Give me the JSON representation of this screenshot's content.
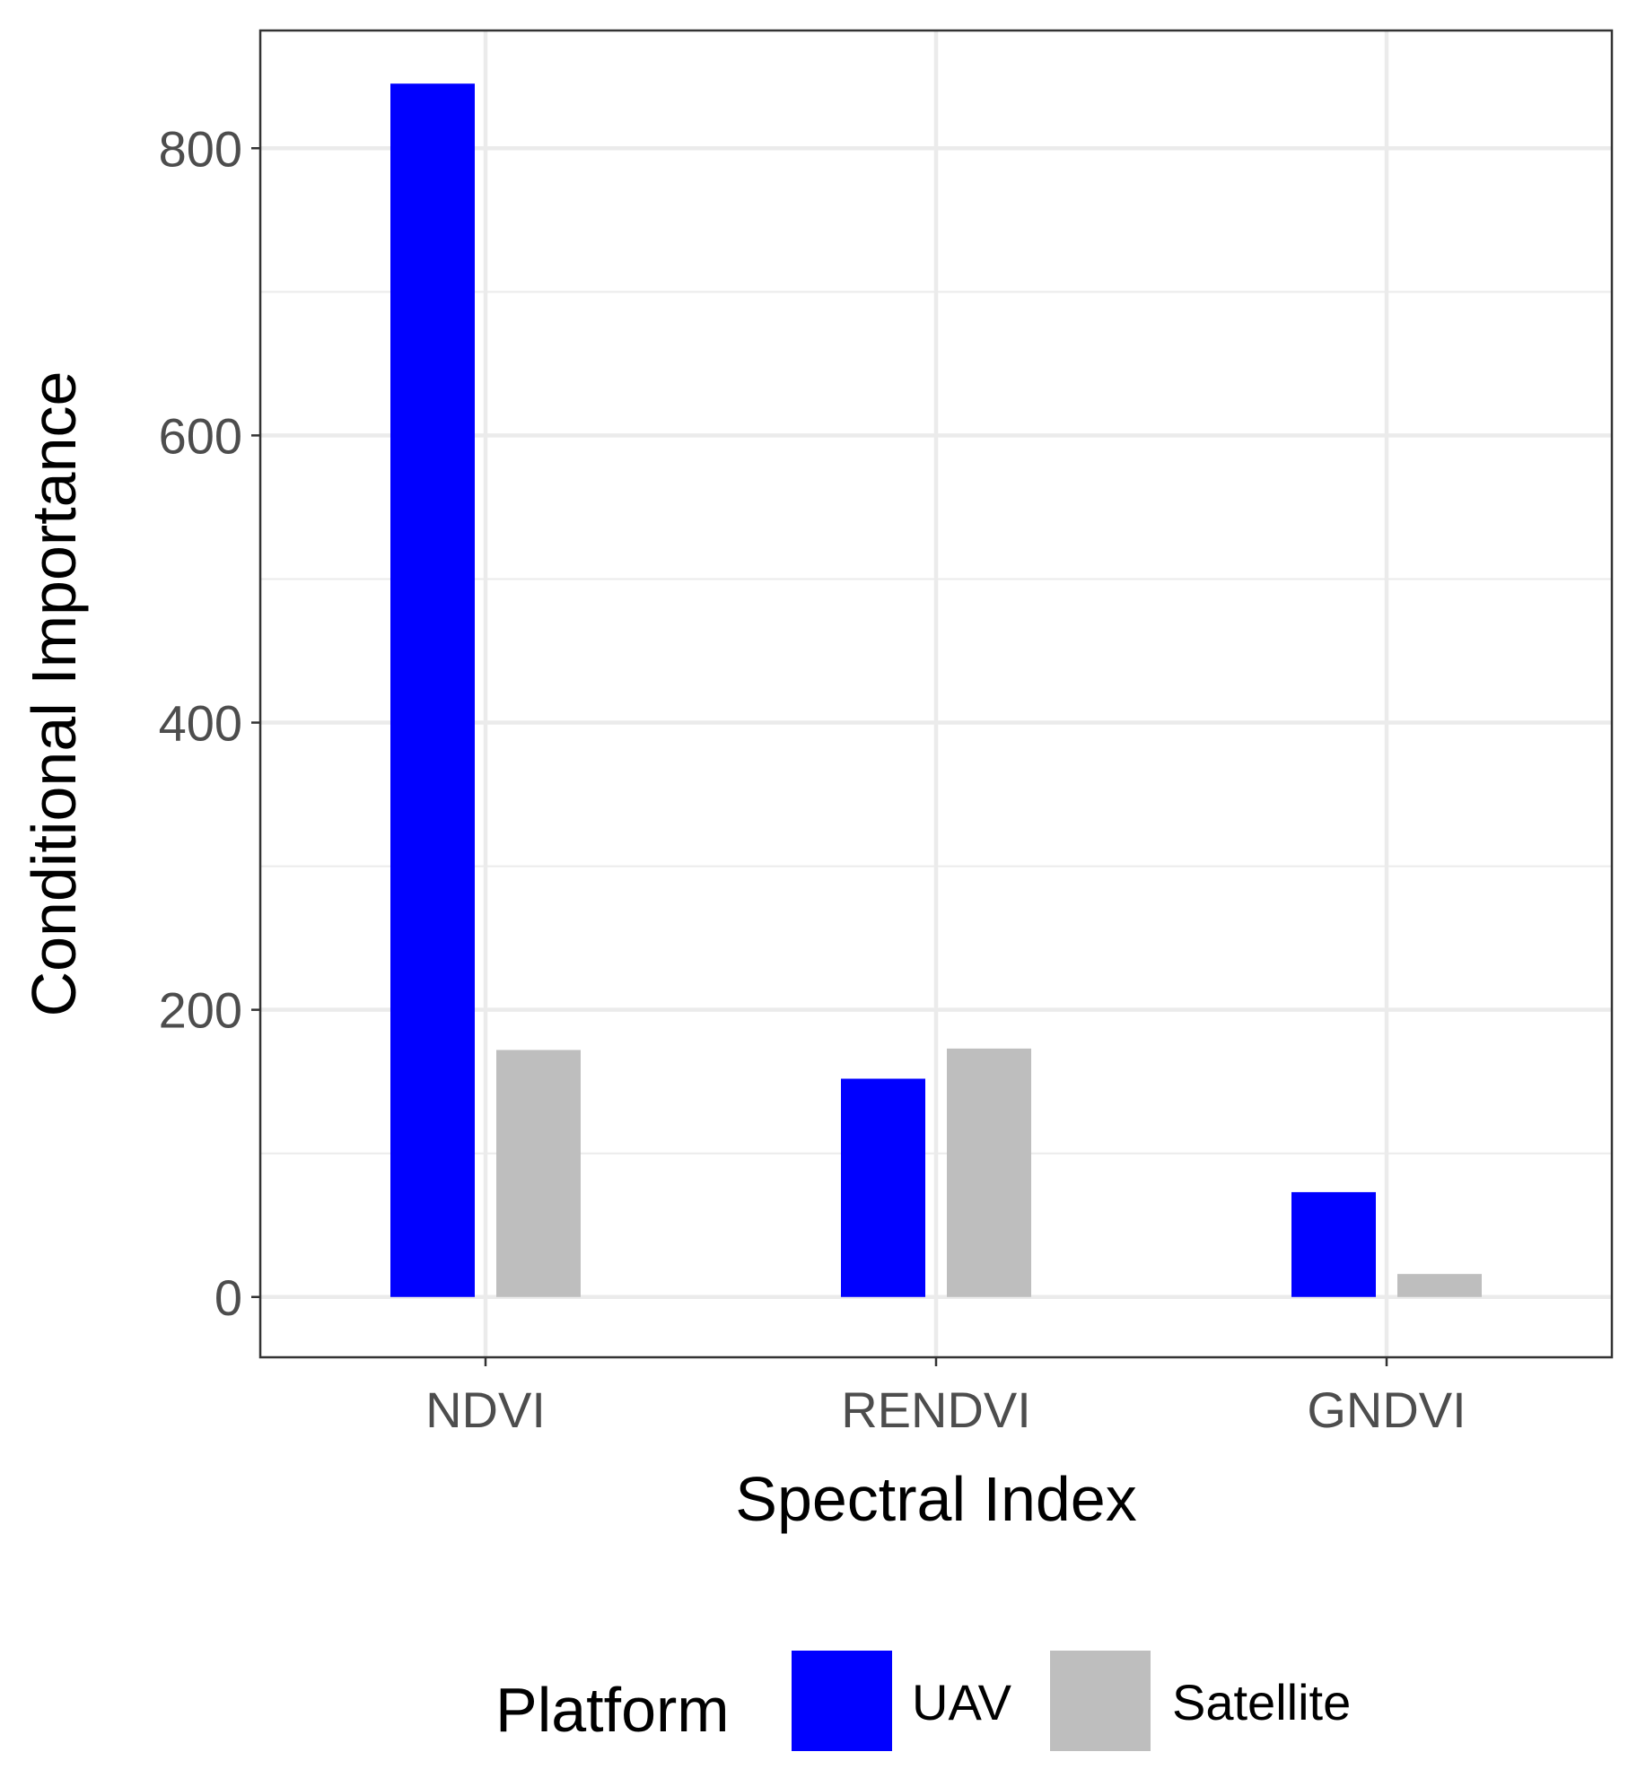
{
  "chart_data": {
    "type": "bar",
    "title": "",
    "xlabel": "Spectral Index",
    "ylabel": "Conditional Importance",
    "categories": [
      "NDVI",
      "RENDVI",
      "GNDVI"
    ],
    "series": [
      {
        "name": "UAV",
        "values": [
          845,
          152,
          73
        ],
        "color": "#0000FF"
      },
      {
        "name": "Satellite",
        "values": [
          172,
          173,
          16
        ],
        "color": "#BEBEBE"
      }
    ],
    "ylim": [
      -42,
      882
    ],
    "yticks": [
      0,
      200,
      400,
      600,
      800
    ],
    "ytick_labels": [
      "0",
      "200",
      "400",
      "600",
      "800"
    ],
    "grid": true,
    "legend": {
      "title": "Platform",
      "position": "bottom",
      "entries": [
        "UAV",
        "Satellite"
      ]
    }
  }
}
